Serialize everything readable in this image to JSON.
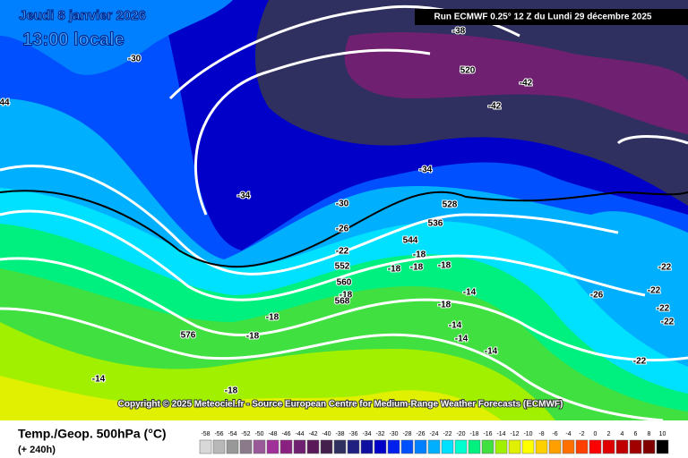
{
  "header": {
    "date": "Jeudi 8 janvier 2026",
    "time": "13:00 locale",
    "run": "Run ECMWF 0.25° 12 Z du Lundi 29 décembre 2025"
  },
  "copyright": "Copyright © 2025 Meteociel.fr - Source European Centre for Medium-Range Weather Forecasts (ECMWF)",
  "footer": {
    "title": "Temp./Geop. 500hPa (°C)",
    "range": "(+ 240h)"
  },
  "contour_labels": [
    "-30",
    "-38",
    "520",
    "-42",
    "-42",
    "-34",
    "-34",
    "-30",
    "528",
    "-26",
    "536",
    "544",
    "-22",
    "-18",
    "-18",
    "-18",
    "-18",
    "552",
    "560",
    "-18",
    "568",
    "-18",
    "-14",
    "-18",
    "-18",
    "576",
    "-14",
    "-14",
    "-14",
    "-14",
    "-18",
    "-22",
    "-22",
    "-22",
    "-26",
    "-22",
    "-22",
    "44"
  ],
  "legend": {
    "labels": [
      "-58",
      "-56",
      "-54",
      "-52",
      "-50",
      "-48",
      "-46",
      "-44",
      "-42",
      "-40",
      "-38",
      "-36",
      "-34",
      "-32",
      "-30",
      "-28",
      "-26",
      "-24",
      "-22",
      "-20",
      "-18",
      "-16",
      "-14",
      "-12",
      "-10",
      "-8",
      "-6",
      "-4",
      "-2",
      "0",
      "2",
      "4",
      "6",
      "8",
      "10"
    ],
    "colors": [
      "#d8d8d8",
      "#b8b8b8",
      "#989898",
      "#8a7a8a",
      "#9a5a9a",
      "#a0309a",
      "#8a2080",
      "#702070",
      "#5a1a5a",
      "#44204c",
      "#303060",
      "#202080",
      "#1010a0",
      "#0000c8",
      "#0020f0",
      "#0050ff",
      "#0080ff",
      "#00b0ff",
      "#00e0ff",
      "#00ffd0",
      "#00f080",
      "#40e040",
      "#a0f000",
      "#e0f000",
      "#ffff00",
      "#ffd000",
      "#ffa000",
      "#ff7000",
      "#ff4000",
      "#ff0000",
      "#e00000",
      "#c00000",
      "#a00000",
      "#800000",
      "#000000"
    ]
  }
}
